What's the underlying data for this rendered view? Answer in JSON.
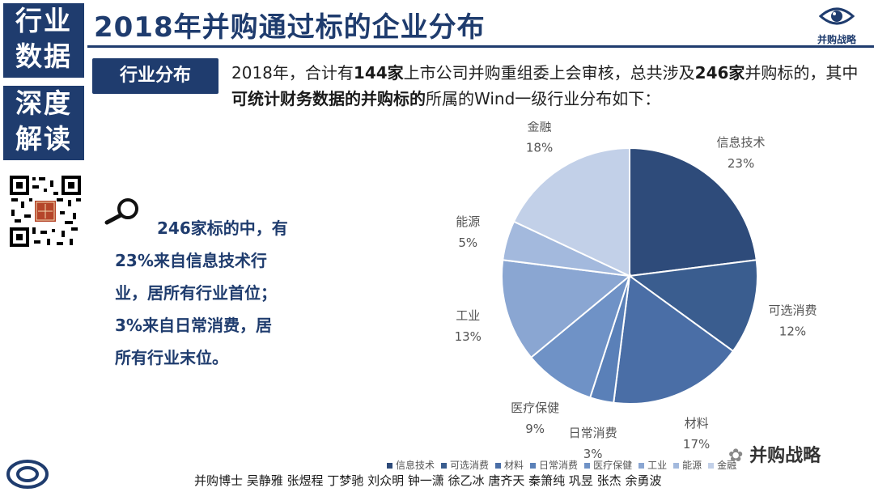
{
  "sidebar": {
    "block1_line1": "行业",
    "block1_line2": "数据",
    "block2_line1": "深度",
    "block2_line2": "解读"
  },
  "header": {
    "title": "2018年并购通过标的企业分布",
    "logo_label": "并购战略"
  },
  "tag_label": "行业分布",
  "intro": {
    "p1": "2018年，合计有",
    "b1": "144家",
    "p2": "上市公司并购重组委上会审核，总共涉及",
    "b2": "246家",
    "p3": "并购标的，其中",
    "b3": "可统计财务数据的并购标的",
    "p4": "所属的Wind一级行业分布如下："
  },
  "note": {
    "line1": "246家标的中，有",
    "line2": "23%来自信息技术行",
    "line3": "业，居所有行业首位；",
    "line4": "3%来自日常消费，居",
    "line5": "所有行业末位。"
  },
  "chart_data": {
    "type": "pie",
    "categories": [
      "信息技术",
      "可选消费",
      "材料",
      "日常消费",
      "医疗保健",
      "工业",
      "能源",
      "金融"
    ],
    "values": [
      23,
      12,
      17,
      3,
      9,
      13,
      5,
      18
    ],
    "value_labels": [
      "23%",
      "12%",
      "17%",
      "3%",
      "9%",
      "13%",
      "5%",
      "18%"
    ],
    "colors": [
      "#2e4b7a",
      "#3a5d8f",
      "#4a6ea6",
      "#5a80b8",
      "#6f92c6",
      "#8aa6d2",
      "#a3b9dd",
      "#c2d0e8"
    ],
    "legend_placement": "bottom"
  },
  "footer": {
    "authors": "并购博士 吴静雅 张煜程 丁梦驰 刘众明 钟一潇 徐乙冰 唐齐天 秦箫纯 巩昱 张杰 余勇波",
    "wechat_label": "并购战略"
  }
}
